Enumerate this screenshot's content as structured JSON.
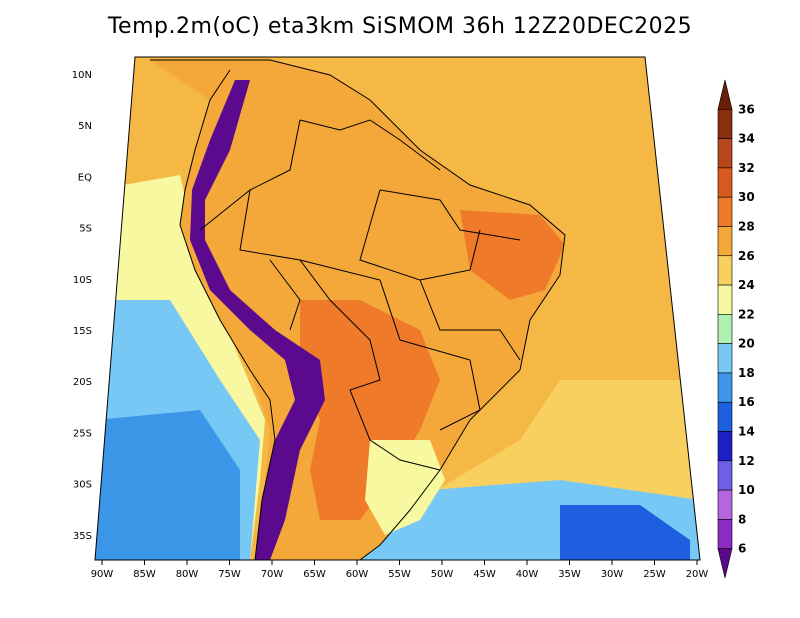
{
  "title": "Temp.2m(oC) eta3km SiSMOM 36h 12Z20DEC2025",
  "lat_labels": [
    "10N",
    "5N",
    "EQ",
    "5S",
    "10S",
    "15S",
    "20S",
    "25S",
    "30S",
    "35S"
  ],
  "lon_labels": [
    "90W",
    "85W",
    "80W",
    "75W",
    "70W",
    "65W",
    "60W",
    "55W",
    "50W",
    "45W",
    "40W",
    "35W",
    "30W",
    "25W",
    "20W"
  ],
  "colorbar": {
    "labels": [
      "6",
      "8",
      "10",
      "12",
      "14",
      "16",
      "18",
      "20",
      "22",
      "24",
      "26",
      "28",
      "30",
      "32",
      "34",
      "36"
    ],
    "colors": [
      "#5b0a8e",
      "#8e2bc4",
      "#b565e0",
      "#6f5fe8",
      "#1f1fc8",
      "#1e5fe0",
      "#3c96e8",
      "#78c8f5",
      "#b0f0b0",
      "#f8f8a0",
      "#f8d060",
      "#f5a83a",
      "#ee7a2a",
      "#d85a1e",
      "#b8461c",
      "#8a2e10",
      "#6a1e08"
    ]
  },
  "colors": {
    "ocean_warm": "#f5b844",
    "land_hot": "#ee7a2a",
    "ocean_cool": "#78c8f5",
    "ocean_cold": "#3c96e8",
    "andes": "#5b0a8e",
    "border": "#000000"
  }
}
